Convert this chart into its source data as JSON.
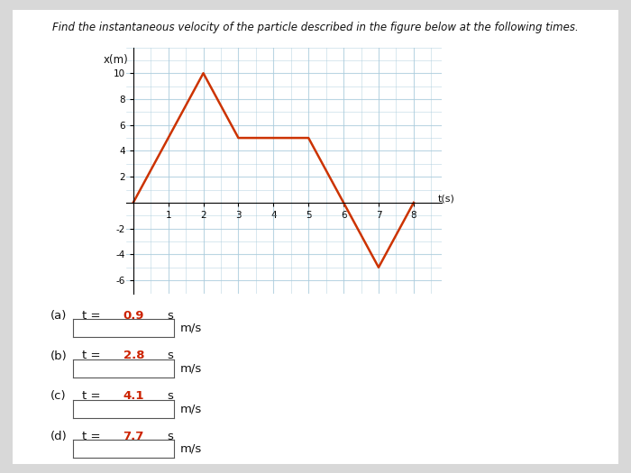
{
  "title": "Find the instantaneous velocity of the particle described in the figure below at the following times.",
  "xlabel": "t(s)",
  "ylabel": "x(m)",
  "line_color": "#cc3300",
  "line_width": 1.8,
  "x_points": [
    0,
    2,
    3,
    5,
    6,
    7,
    8
  ],
  "y_points": [
    0,
    10,
    5,
    5,
    0,
    -5,
    0
  ],
  "xlim": [
    -0.2,
    8.8
  ],
  "ylim": [
    -7,
    12
  ],
  "xticks": [
    1,
    2,
    3,
    4,
    5,
    6,
    7,
    8
  ],
  "yticks": [
    -6,
    -4,
    -2,
    2,
    4,
    6,
    8,
    10
  ],
  "grid_color": "#aaccdd",
  "grid_alpha": 0.8,
  "background_color": "#ffffff",
  "fig_background": "#d8d8d8",
  "questions": [
    {
      "label": "(a)",
      "t_label": "t = 0.9 s"
    },
    {
      "label": "(b)",
      "t_label": "t = 2.8 s"
    },
    {
      "label": "(c)",
      "t_label": "t = 4.1 s"
    },
    {
      "label": "(d)",
      "t_label": "t = 7.7 s"
    }
  ],
  "units": "m/s",
  "t_color": "#cc2200",
  "text_color": "#111111",
  "graph_title": "x(m)"
}
